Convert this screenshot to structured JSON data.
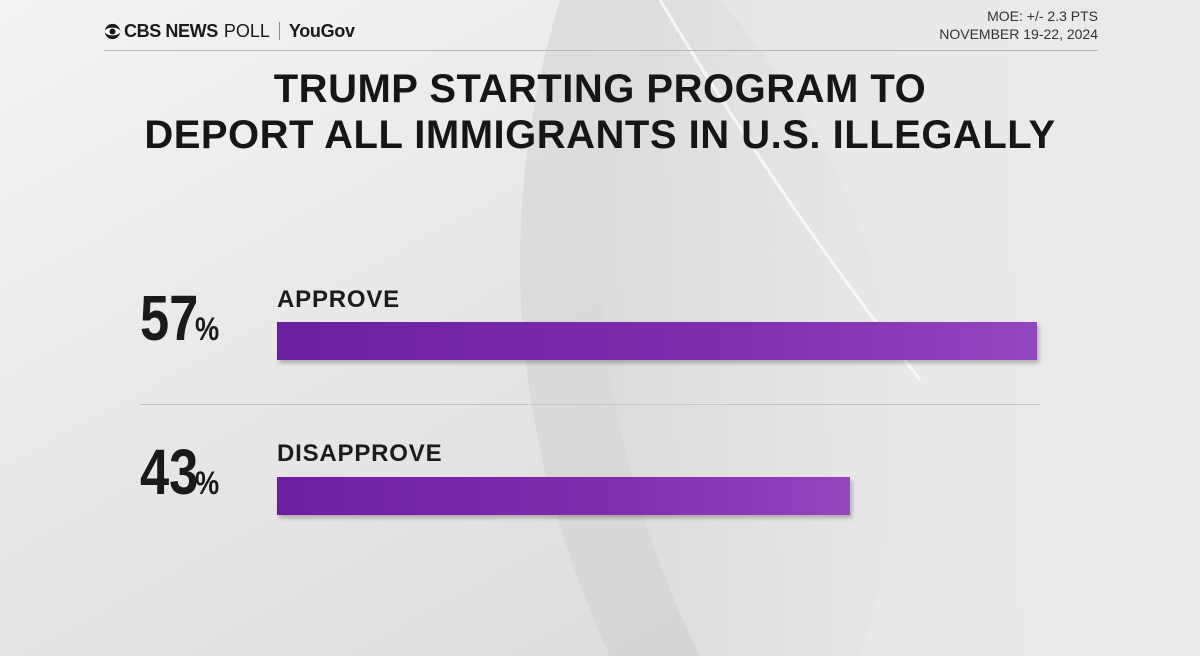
{
  "header": {
    "brand_main": "CBS NEWS",
    "brand_poll": "POLL",
    "brand_partner": "YouGov",
    "moe": "MOE: +/- 2.3 PTS",
    "dates": "NOVEMBER 19-22, 2024"
  },
  "chart_data": {
    "type": "bar",
    "title": "TRUMP STARTING PROGRAM TO DEPORT ALL IMMIGRANTS IN U.S. ILLEGALLY",
    "title_lines": [
      "TRUMP STARTING PROGRAM TO",
      "DEPORT ALL IMMIGRANTS IN U.S. ILLEGALLY"
    ],
    "categories": [
      "APPROVE",
      "DISAPPROVE"
    ],
    "values": [
      57,
      43
    ],
    "value_labels": [
      "57",
      "43"
    ],
    "unit": "%",
    "xlim": [
      0,
      100
    ],
    "orientation": "horizontal",
    "bar_color": "#7e2fae"
  }
}
